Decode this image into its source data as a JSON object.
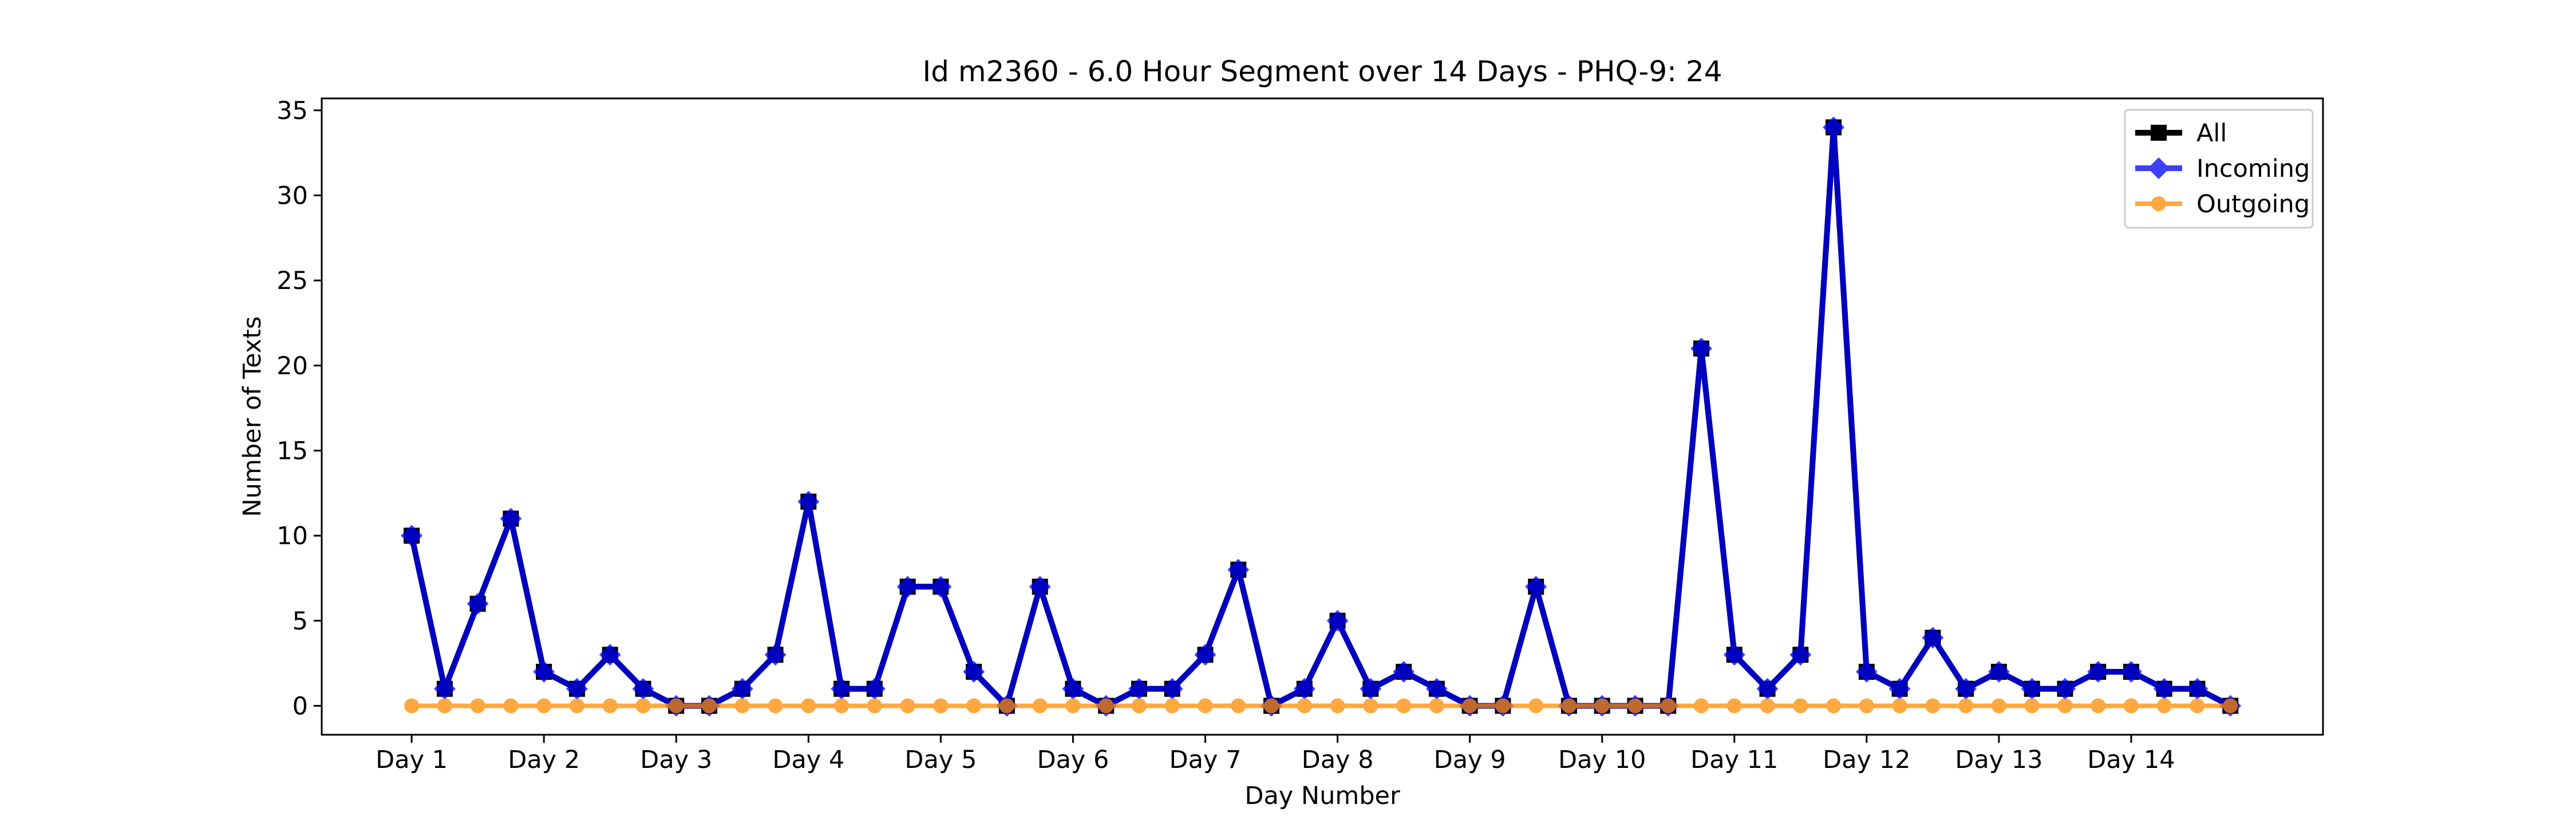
{
  "chart_data": {
    "type": "line",
    "title": "Id m2360 - 6.0 Hour Segment over 14 Days - PHQ-9: 24",
    "xlabel": "Day Number",
    "ylabel": "Number of Texts",
    "xticks": [
      {
        "x": 1,
        "label": "Day 1"
      },
      {
        "x": 2,
        "label": "Day 2"
      },
      {
        "x": 3,
        "label": "Day 3"
      },
      {
        "x": 4,
        "label": "Day 4"
      },
      {
        "x": 5,
        "label": "Day 5"
      },
      {
        "x": 6,
        "label": "Day 6"
      },
      {
        "x": 7,
        "label": "Day 7"
      },
      {
        "x": 8,
        "label": "Day 8"
      },
      {
        "x": 9,
        "label": "Day 9"
      },
      {
        "x": 10,
        "label": "Day 10"
      },
      {
        "x": 11,
        "label": "Day 11"
      },
      {
        "x": 12,
        "label": "Day 12"
      },
      {
        "x": 13,
        "label": "Day 13"
      },
      {
        "x": 14,
        "label": "Day 14"
      }
    ],
    "yticks": [
      0,
      5,
      10,
      15,
      20,
      25,
      30,
      35
    ],
    "xlim": [
      0.32,
      15.45
    ],
    "ylim": [
      -1.7,
      35.7
    ],
    "grid": false,
    "legend_position": "top-right",
    "x": [
      1,
      1.25,
      1.5,
      1.75,
      2,
      2.25,
      2.5,
      2.75,
      3,
      3.25,
      3.5,
      3.75,
      4,
      4.25,
      4.5,
      4.75,
      5,
      5.25,
      5.5,
      5.75,
      6,
      6.25,
      6.5,
      6.75,
      7,
      7.25,
      7.5,
      7.75,
      8,
      8.25,
      8.5,
      8.75,
      9,
      9.25,
      9.5,
      9.75,
      10,
      10.25,
      10.5,
      10.75,
      11,
      11.25,
      11.5,
      11.75,
      12,
      12.25,
      12.5,
      12.75,
      13,
      13.25,
      13.5,
      13.75,
      14,
      14.25,
      14.5,
      14.75
    ],
    "series": [
      {
        "name": "All",
        "color": "#000000",
        "marker": "square",
        "values": [
          10,
          1,
          6,
          11,
          2,
          1,
          3,
          1,
          0,
          0,
          1,
          3,
          12,
          1,
          1,
          7,
          7,
          2,
          0,
          7,
          1,
          0,
          1,
          1,
          3,
          8,
          0,
          1,
          5,
          1,
          2,
          1,
          0,
          0,
          7,
          0,
          0,
          0,
          0,
          21,
          3,
          1,
          3,
          34,
          2,
          1,
          4,
          1,
          2,
          1,
          1,
          2,
          2,
          1,
          1,
          0
        ]
      },
      {
        "name": "Incoming",
        "color": "#0000ff",
        "marker": "diamond",
        "values": [
          10,
          1,
          6,
          11,
          2,
          1,
          3,
          1,
          0,
          0,
          1,
          3,
          12,
          1,
          1,
          7,
          7,
          2,
          0,
          7,
          1,
          0,
          1,
          1,
          3,
          8,
          0,
          1,
          5,
          1,
          2,
          1,
          0,
          0,
          7,
          0,
          0,
          0,
          0,
          21,
          3,
          1,
          3,
          34,
          2,
          1,
          4,
          1,
          2,
          1,
          1,
          2,
          2,
          1,
          1,
          0
        ]
      },
      {
        "name": "Outgoing",
        "color": "#ff8c00",
        "marker": "circle",
        "values": [
          0,
          0,
          0,
          0,
          0,
          0,
          0,
          0,
          0,
          0,
          0,
          0,
          0,
          0,
          0,
          0,
          0,
          0,
          0,
          0,
          0,
          0,
          0,
          0,
          0,
          0,
          0,
          0,
          0,
          0,
          0,
          0,
          0,
          0,
          0,
          0,
          0,
          0,
          0,
          0,
          0,
          0,
          0,
          0,
          0,
          0,
          0,
          0,
          0,
          0,
          0,
          0,
          0,
          0,
          0,
          0
        ]
      }
    ]
  }
}
